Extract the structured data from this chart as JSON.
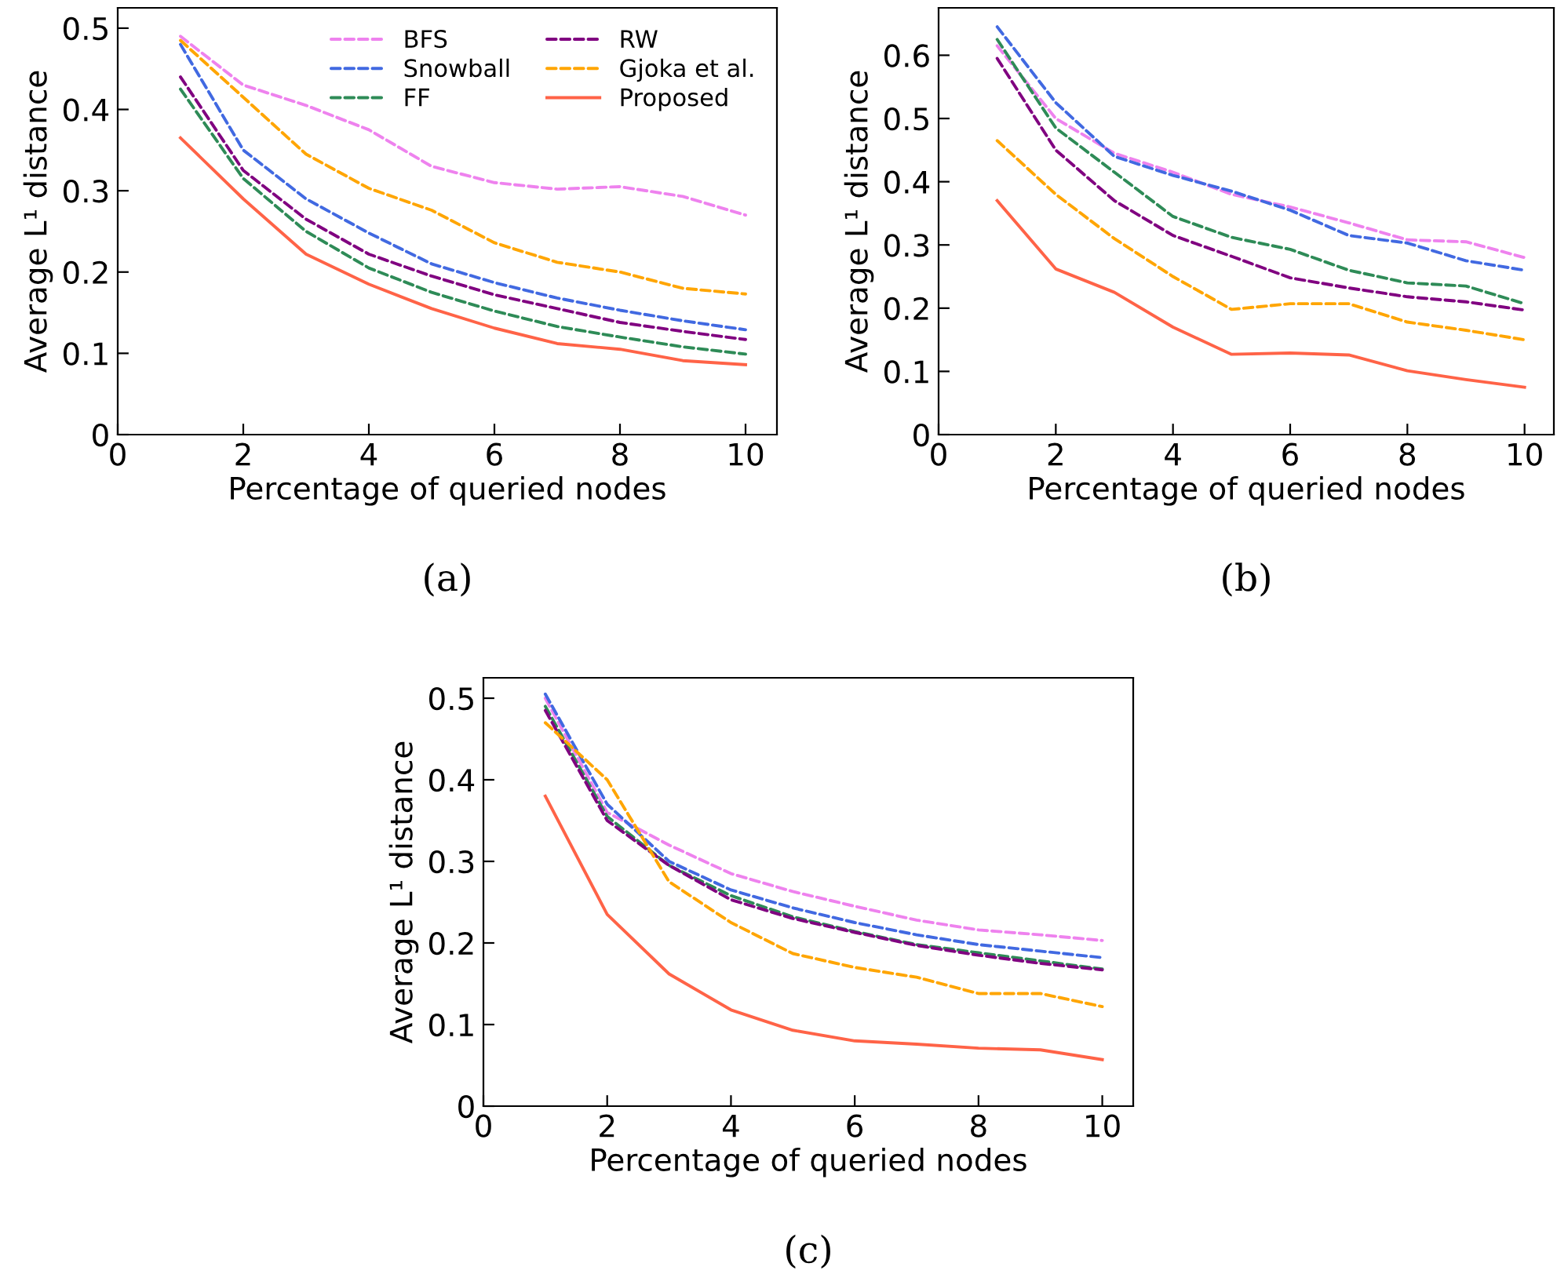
{
  "chart_data": [
    {
      "type": "line",
      "xlabel": "Percentage of queried nodes",
      "ylabel": "Average L¹ distance",
      "annotations": [
        "(a)"
      ],
      "x": [
        1,
        2,
        3,
        4,
        5,
        6,
        7,
        8,
        9,
        10
      ],
      "xlim": [
        0,
        10.5
      ],
      "xticks": [
        0,
        2,
        4,
        6,
        8,
        10
      ],
      "ylim": [
        0,
        0.525
      ],
      "yticks": [
        0,
        0.1,
        0.2,
        0.3,
        0.4,
        0.5
      ],
      "legend": "top right",
      "grid": false,
      "series": [
        {
          "name": "BFS",
          "color": "#ee82ee",
          "line_style": "dashed",
          "values": [
            0.49,
            0.43,
            0.405,
            0.375,
            0.33,
            0.31,
            0.302,
            0.305,
            0.293,
            0.27
          ]
        },
        {
          "name": "Snowball",
          "color": "#4169e1",
          "line_style": "dashed",
          "values": [
            0.48,
            0.35,
            0.29,
            0.248,
            0.21,
            0.187,
            0.168,
            0.153,
            0.14,
            0.129
          ]
        },
        {
          "name": "FF",
          "color": "#2e8b57",
          "line_style": "dashed",
          "values": [
            0.425,
            0.315,
            0.25,
            0.205,
            0.175,
            0.152,
            0.133,
            0.12,
            0.108,
            0.099
          ]
        },
        {
          "name": "RW",
          "color": "#800080",
          "line_style": "dashed",
          "values": [
            0.44,
            0.325,
            0.265,
            0.222,
            0.195,
            0.172,
            0.155,
            0.138,
            0.127,
            0.117
          ]
        },
        {
          "name": "Gjoka et al.",
          "color": "#ffa500",
          "line_style": "dashed",
          "values": [
            0.485,
            0.415,
            0.345,
            0.303,
            0.276,
            0.236,
            0.212,
            0.2,
            0.18,
            0.173
          ]
        },
        {
          "name": "Proposed",
          "color": "#ff6347",
          "line_style": "solid",
          "values": [
            0.365,
            0.29,
            0.222,
            0.185,
            0.155,
            0.131,
            0.112,
            0.105,
            0.091,
            0.086
          ]
        }
      ]
    },
    {
      "type": "line",
      "xlabel": "Percentage of queried nodes",
      "ylabel": "Average L¹ distance",
      "annotations": [
        "(b)"
      ],
      "x": [
        1,
        2,
        3,
        4,
        5,
        6,
        7,
        8,
        9,
        10
      ],
      "xlim": [
        0,
        10.5
      ],
      "xticks": [
        0,
        2,
        4,
        6,
        8,
        10
      ],
      "ylim": [
        0,
        0.675
      ],
      "yticks": [
        0,
        0.1,
        0.2,
        0.3,
        0.4,
        0.5,
        0.6
      ],
      "grid": false,
      "series": [
        {
          "color": "#ee82ee",
          "line_style": "dashed",
          "values": [
            0.615,
            0.5,
            0.445,
            0.415,
            0.38,
            0.36,
            0.335,
            0.308,
            0.305,
            0.28
          ]
        },
        {
          "color": "#4169e1",
          "line_style": "dashed",
          "values": [
            0.645,
            0.525,
            0.44,
            0.41,
            0.385,
            0.355,
            0.315,
            0.303,
            0.275,
            0.26
          ]
        },
        {
          "color": "#2e8b57",
          "line_style": "dashed",
          "values": [
            0.625,
            0.485,
            0.415,
            0.345,
            0.312,
            0.293,
            0.26,
            0.24,
            0.235,
            0.207
          ]
        },
        {
          "color": "#800080",
          "line_style": "dashed",
          "values": [
            0.595,
            0.45,
            0.37,
            0.315,
            0.282,
            0.248,
            0.232,
            0.218,
            0.21,
            0.197
          ]
        },
        {
          "color": "#ffa500",
          "line_style": "dashed",
          "values": [
            0.465,
            0.38,
            0.31,
            0.25,
            0.198,
            0.207,
            0.207,
            0.178,
            0.165,
            0.15
          ]
        },
        {
          "color": "#ff6347",
          "line_style": "solid",
          "values": [
            0.37,
            0.262,
            0.225,
            0.17,
            0.127,
            0.129,
            0.126,
            0.101,
            0.087,
            0.075
          ]
        }
      ]
    },
    {
      "type": "line",
      "xlabel": "Percentage of queried nodes",
      "ylabel": "Average L¹ distance",
      "annotations": [
        "(c)"
      ],
      "x": [
        1,
        2,
        3,
        4,
        5,
        6,
        7,
        8,
        9,
        10
      ],
      "xlim": [
        0,
        10.5
      ],
      "xticks": [
        0,
        2,
        4,
        6,
        8,
        10
      ],
      "ylim": [
        0,
        0.525
      ],
      "yticks": [
        0,
        0.1,
        0.2,
        0.3,
        0.4,
        0.5
      ],
      "grid": false,
      "series": [
        {
          "color": "#ee82ee",
          "line_style": "dashed",
          "values": [
            0.5,
            0.36,
            0.32,
            0.285,
            0.263,
            0.245,
            0.228,
            0.216,
            0.21,
            0.203
          ]
        },
        {
          "color": "#4169e1",
          "line_style": "dashed",
          "values": [
            0.505,
            0.37,
            0.3,
            0.265,
            0.243,
            0.225,
            0.21,
            0.198,
            0.19,
            0.182
          ]
        },
        {
          "color": "#2e8b57",
          "line_style": "dashed",
          "values": [
            0.49,
            0.355,
            0.295,
            0.258,
            0.232,
            0.214,
            0.198,
            0.188,
            0.178,
            0.168
          ]
        },
        {
          "color": "#800080",
          "line_style": "dashed",
          "values": [
            0.485,
            0.35,
            0.295,
            0.253,
            0.23,
            0.213,
            0.197,
            0.185,
            0.175,
            0.167
          ]
        },
        {
          "color": "#ffa500",
          "line_style": "dashed",
          "values": [
            0.47,
            0.4,
            0.275,
            0.225,
            0.187,
            0.17,
            0.158,
            0.138,
            0.138,
            0.122
          ]
        },
        {
          "color": "#ff6347",
          "line_style": "solid",
          "values": [
            0.38,
            0.235,
            0.162,
            0.118,
            0.093,
            0.08,
            0.076,
            0.071,
            0.069,
            0.057
          ]
        }
      ]
    }
  ]
}
